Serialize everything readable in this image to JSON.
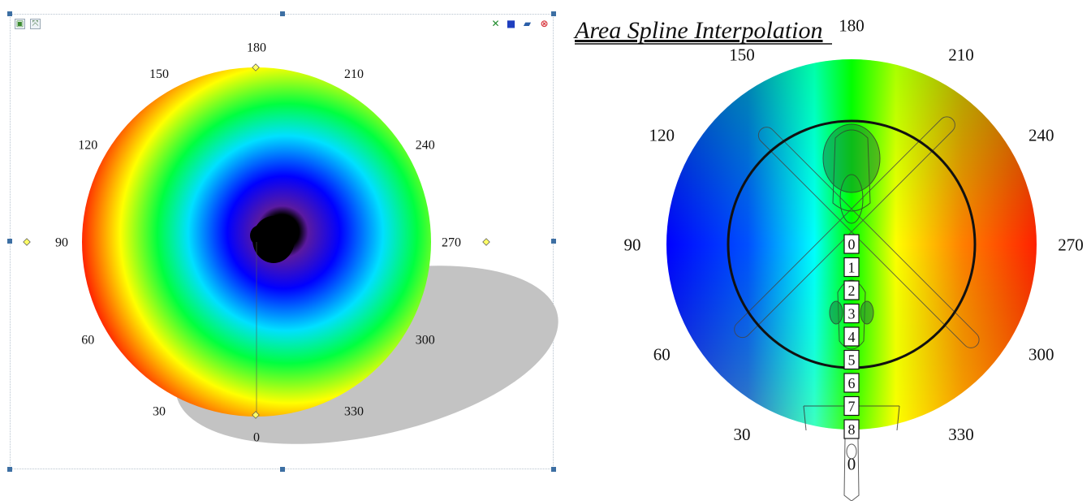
{
  "toolbar_left": [
    {
      "icon": "export-image-icon",
      "glyph": "▣",
      "color": "#3b8a2e"
    },
    {
      "icon": "fit-view-icon",
      "glyph": "⤧",
      "color": "#3b6e3b"
    }
  ],
  "toolbar_right": [
    {
      "icon": "close-view-icon",
      "glyph": "✕",
      "color": "#1d8a2a"
    },
    {
      "icon": "save-icon",
      "glyph": "■",
      "color": "#1f3fbf"
    },
    {
      "icon": "open-folder-icon",
      "glyph": "▰",
      "color": "#2a5ea8"
    },
    {
      "icon": "stop-icon",
      "glyph": "⊗",
      "color": "#d8383f"
    }
  ],
  "chart_data": [
    {
      "type": "heatmap",
      "projection": "polar",
      "title": "",
      "angle_labels": [
        "0",
        "30",
        "60",
        "90",
        "120",
        "150",
        "180",
        "210",
        "240",
        "270",
        "300",
        "330"
      ],
      "colormap": [
        "#000000",
        "#5a00c8",
        "#0000ff",
        "#00ffff",
        "#00ff00",
        "#ffff00",
        "#ff0000"
      ],
      "min_center_offset": [
        0.08,
        0.05
      ],
      "shadow": true
    },
    {
      "type": "heatmap",
      "projection": "polar",
      "title": "Area Spline Interpolation",
      "angle_labels": [
        "0",
        "30",
        "60",
        "90",
        "120",
        "150",
        "180",
        "210",
        "240",
        "270",
        "300",
        "330"
      ],
      "colormap": [
        "#0000ff",
        "#00ffff",
        "#00ff00",
        "#ffff00",
        "#ff8000",
        "#ff2000"
      ],
      "overlay": "helicopter-outline",
      "station_labels": [
        "0",
        "1",
        "2",
        "3",
        "4",
        "5",
        "6",
        "7",
        "8"
      ]
    }
  ]
}
